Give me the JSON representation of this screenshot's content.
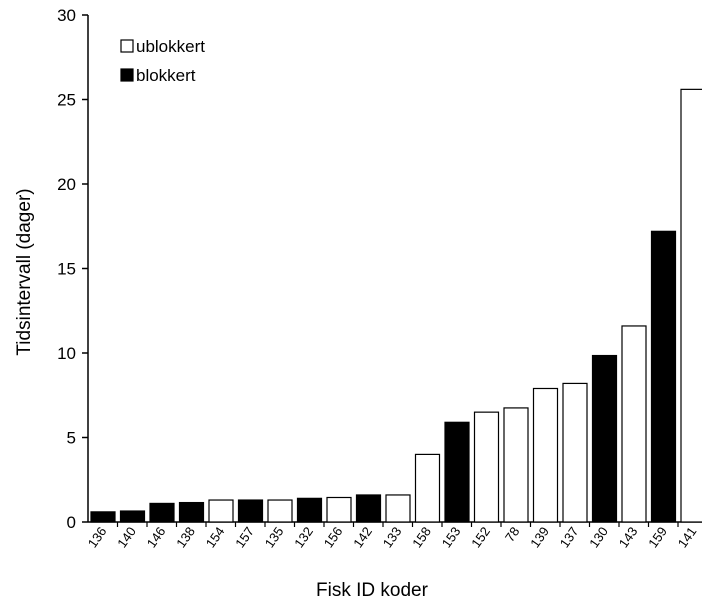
{
  "chart_data": {
    "type": "bar",
    "title": "",
    "xlabel": "Fisk ID koder",
    "ylabel": "Tidsintervall (dager)",
    "ylim": [
      0,
      30
    ],
    "yticks": [
      0,
      5,
      10,
      15,
      20,
      25,
      30
    ],
    "grid": false,
    "legend_position": "top-left",
    "categories": [
      "136",
      "140",
      "146",
      "138",
      "154",
      "157",
      "135",
      "132",
      "156",
      "142",
      "133",
      "158",
      "153",
      "152",
      "78",
      "139",
      "137",
      "130",
      "143",
      "159",
      "141"
    ],
    "values": [
      0.6,
      0.65,
      1.1,
      1.15,
      1.3,
      1.3,
      1.3,
      1.4,
      1.45,
      1.6,
      1.6,
      4.0,
      5.9,
      6.5,
      6.75,
      7.9,
      8.2,
      9.85,
      11.6,
      17.2,
      25.6
    ],
    "groups": [
      "blokkert",
      "blokkert",
      "blokkert",
      "blokkert",
      "ublokkert",
      "blokkert",
      "ublokkert",
      "blokkert",
      "ublokkert",
      "blokkert",
      "ublokkert",
      "ublokkert",
      "blokkert",
      "ublokkert",
      "ublokkert",
      "ublokkert",
      "ublokkert",
      "blokkert",
      "ublokkert",
      "blokkert",
      "ublokkert"
    ],
    "legend": [
      {
        "name": "ublokkert",
        "color": "#ffffff"
      },
      {
        "name": "blokkert",
        "color": "#000000"
      }
    ]
  }
}
